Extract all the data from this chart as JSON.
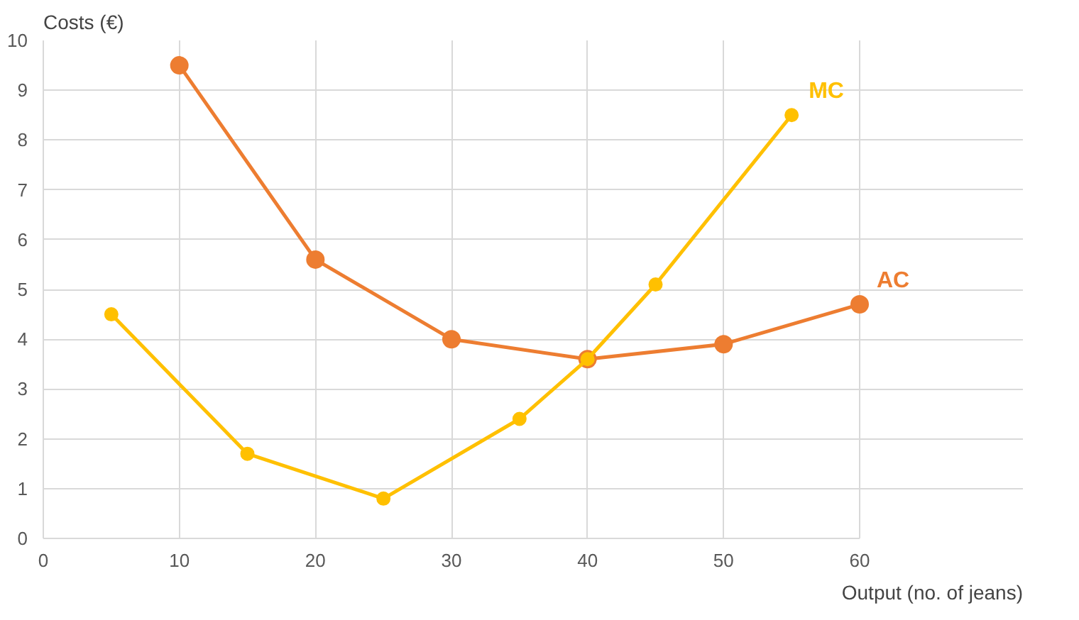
{
  "chart_data": {
    "type": "line",
    "xlabel": "Output (no. of jeans)",
    "ylabel": "Costs (€)",
    "xlim": [
      0,
      60
    ],
    "ylim": [
      0,
      10
    ],
    "xticks": [
      0,
      10,
      20,
      30,
      40,
      50,
      60
    ],
    "yticks": [
      0,
      1,
      2,
      3,
      4,
      5,
      6,
      7,
      8,
      9,
      10
    ],
    "grid": true,
    "marker": "circle",
    "series": [
      {
        "name": "MC",
        "color": "#ffc000",
        "x": [
          5,
          15,
          25,
          35,
          40,
          45,
          55
        ],
        "values": [
          4.5,
          1.7,
          0.8,
          2.4,
          3.6,
          5.1,
          8.5
        ]
      },
      {
        "name": "AC",
        "color": "#ed7d31",
        "x": [
          10,
          20,
          30,
          40,
          50,
          60
        ],
        "values": [
          9.5,
          5.6,
          4.0,
          3.6,
          3.9,
          4.7
        ]
      }
    ]
  }
}
